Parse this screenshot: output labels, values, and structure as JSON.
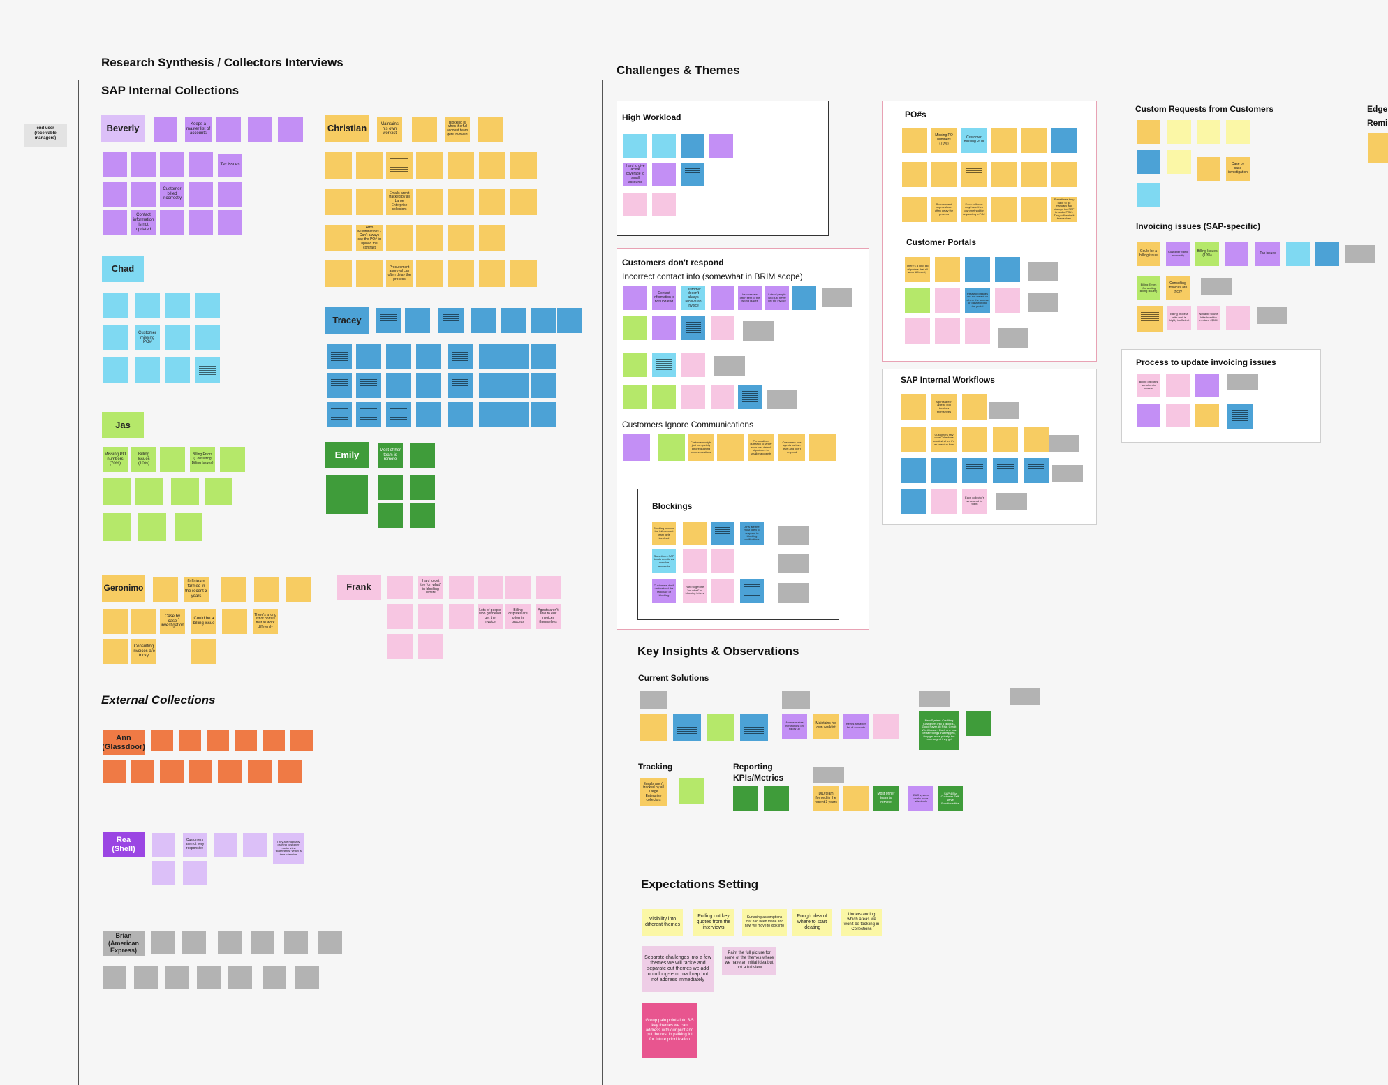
{
  "side_tag": "end user (receivable managers)",
  "headings": {
    "main": "Research Synthesis / Collectors Interviews",
    "sap_internal": "SAP Internal Collections",
    "external": "External Collections",
    "challenges": "Challenges & Themes",
    "high_workload": "High Workload",
    "no_respond": "Customers don't respond",
    "incorrect_contact": "Incorrect contact info (somewhat in BRIM scope)",
    "ignore_comms": "Customers Ignore Communications",
    "blockings": "Blockings",
    "po": "PO#s",
    "portals": "Customer Portals",
    "sap_workflows": "SAP Internal Workflows",
    "custom_requests": "Custom Requests from Customers",
    "invoicing_issues": "Invoicing issues (SAP-specific)",
    "process_update": "Process to update invoicing issues",
    "edge_1": "Edge",
    "edge_2": "Remi",
    "key_insights": "Key Insights & Observations",
    "current_solutions": "Current Solutions",
    "tracking": "Tracking",
    "reporting": "Reporting KPIs/Metrics",
    "expectations": "Expectations Setting"
  },
  "people": {
    "beverly": "Beverly",
    "christian": "Christian",
    "chad": "Chad",
    "tracey": "Tracey",
    "jas": "Jas",
    "emily": "Emily",
    "geronimo": "Geronimo",
    "frank": "Frank",
    "ann": "Ann (Glassdoor)",
    "rea": "Rea (Shell)",
    "brian": "Brian (American Express)"
  },
  "notes": {
    "bev1": "Keeps a master list of accounts",
    "bev2": "Tax issues",
    "bev3": "Customer billed incorrectly",
    "bev4": "Contact information is not updated",
    "chr1": "Maintains his own worklist",
    "chr2": "Blocking is when the full account team gets involved",
    "chr3": "Emails aren't tracked by all Large Enterprise collectors",
    "chr4": "Arbo Multifunctions - Can't always say the PO# to upload the contract",
    "chr5": "Procurement approval can often delay the process",
    "chad1": "Customer missing PO#",
    "jas1": "Missing PO numbers (70%)",
    "jas2": "Billing Issues (10%)",
    "jas3": "Billing Errors (Consulting Billing Issues)",
    "emily1": "Most of her team is remote",
    "ger1": "DID team formed in the recent 3 years",
    "ger2": "Case by case investigation",
    "ger3": "Could be a billing issue",
    "ger4": "There's a long list of portals that all work differently",
    "ger5": "Consulting invoices are tricky",
    "frank1": "Hard to get the \"on what\" in blocking letters",
    "frank2": "Lots of people who get never get the invoice",
    "frank3": "Billing disputes are often in process",
    "frank4": "Agents aren't able to edit invoices themselves",
    "rea1": "Customers are not very responsive",
    "rea2": "They are manually drafting customer master view \"statements\" which is time intensive",
    "hw1": "Hard to give active coverage to small accounts",
    "cdr1": "Contact information is not updated",
    "cdr2": "Customer doesn't always receive an invoice",
    "cdr3": "Invoices are often sent to the wrong places",
    "cdr4": "Lots of people who just never get the invoice",
    "ici1": "Customers might just completely ignore dunning communications",
    "ici2": "Personalized outreach to larger accounts, default signatures for smaller accounts",
    "ici3": "Customers use agents as low-level and don't respond",
    "blk1": "Blocking is when the full account team gets involved",
    "blk2": "ARs are the most likely to respond to blocking notifications",
    "blk3": "Sometimes SAP treats credits as overdue accounts",
    "blk4": "Customers don't understand the rationale of blocking",
    "blk5": "Hard to get the \"on what\" in blocking letters",
    "po1": "Missing PO numbers (70%)",
    "po2": "Customer missing PO#",
    "po3": "Procurement approval can often delay the process",
    "po4": "Each collector may have their own method for requesting a PO#",
    "po5": "Sometimes they have to go manually and change the PDF to add a PO# - They will enter it themselves",
    "cp1": "There's a long list of portals that all work differently",
    "cp2": "Password issues are not meant on where the access or password to the portal",
    "sw1": "Agents aren't able to edit invoices themselves",
    "sw2": "Customers rely on a Collector's worklist when it's an overdue flow",
    "sw3": "Each collector's structured for them",
    "cr1": "Case by case investigation",
    "ii1": "Could be a billing issue",
    "ii2": "Customer billed incorrectly",
    "ii3": "Billing Issues (10%)",
    "ii4": "Tax issues",
    "ii5": "Billing Errors (Consulting Billing Issues)",
    "ii6": "Consulting invoices are tricky",
    "ii7": "Billing process with mail is highly inefficient",
    "ii8": "Not able to use letterhead for invoices >$50K",
    "pu1": "Billing disputes are often in process",
    "cs1": "Always makes her worklist on follow up",
    "cs2": "Maintains his own worklist",
    "cs3": "Keeps a master list of accounts",
    "cs4": "New System: Crediting Customers into 4 groups - Good Payer, At Risk, Credit Worthiness... Each one has certain things that happen, they get more priority, the more urgent they get",
    "tr1": "Emails aren't tracked by all Large Enterprise collectors",
    "rk1": "DID team formed in the recent 3 years",
    "rk2": "Most of her team is remote",
    "rk3": "EAC system works more effectively",
    "rk4": "SAP 4 Biz Customer Self-serve Functionalities",
    "ex1": "Visibility into different themes",
    "ex2": "Pulling out key quotes from the interviews",
    "ex3": "Surfacing assumptions that had been made and how we move to look into",
    "ex4": "Rough idea of where to start ideating",
    "ex5": "Understanding which areas we won't be tackling in Collections",
    "ex6": "Separate challenges into a few themes we will tackle and separate out themes we add onto long-term roadmap but not address immediately",
    "ex7": "Paint the full picture for some of the themes where we have an initial idea but not a full view",
    "ex8": "Group pain points into 3-5 key themes we can address with our pilot and put the rest in parking lot for future prioritization"
  }
}
